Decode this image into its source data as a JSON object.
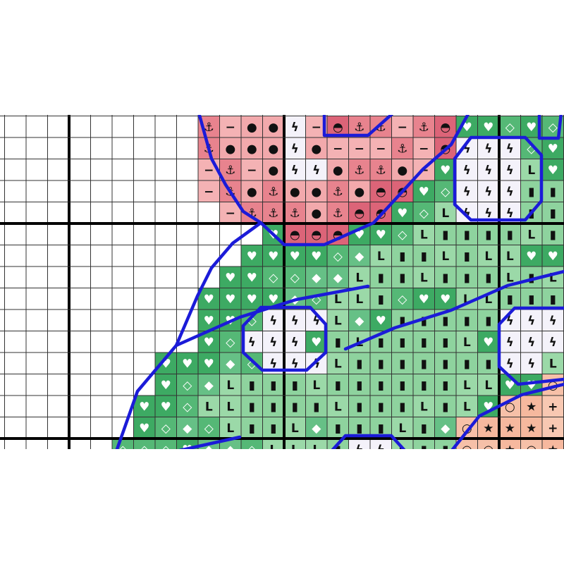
{
  "pattern": {
    "symbols": [
      {
        "glyph": "⚓",
        "fill": "#e8838e",
        "ink": "#111111"
      },
      {
        "glyph": "−",
        "fill": "#f4b2b4",
        "ink": "#111111"
      },
      {
        "glyph": "●",
        "fill": "#f2a9ac",
        "ink": "#111111"
      },
      {
        "glyph": "ϟ",
        "fill": "#f4f2fa",
        "ink": "#111111"
      },
      {
        "glyph": "◓",
        "fill": "#dc6478",
        "ink": "#111111"
      },
      {
        "glyph": "♥",
        "fill": "#3daa63",
        "ink": "#ffffff"
      },
      {
        "glyph": "◇",
        "fill": "#55b876",
        "ink": "#ffffff"
      },
      {
        "glyph": "◆",
        "fill": "#66c086",
        "ink": "#ffffff"
      },
      {
        "glyph": "L",
        "fill": "#9bd9a8",
        "ink": "#111111"
      },
      {
        "glyph": "▮",
        "fill": "#8ed39e",
        "ink": "#111111"
      },
      {
        "glyph": "★",
        "fill": "#f6b89e",
        "ink": "#111111"
      },
      {
        "glyph": "○",
        "fill": "#f6c0a8",
        "ink": "#111111"
      },
      {
        "glyph": "+",
        "fill": "#f8c8b2",
        "ink": "#111111"
      }
    ],
    "rows": [
      [
        null,
        null,
        null,
        null,
        null,
        null,
        null,
        null,
        null,
        "⚓",
        "−",
        "●",
        "●",
        "ϟ",
        "−",
        "◓",
        "⚓",
        "⚓",
        "−",
        "⚓",
        "◓",
        "♥",
        "♥",
        "◇",
        "♥",
        "◇"
      ],
      [
        null,
        null,
        null,
        null,
        null,
        null,
        null,
        null,
        null,
        "⚓",
        "●",
        "●",
        "●",
        "ϟ",
        "●",
        "−",
        "−",
        "−",
        "⚓",
        "−",
        "◓",
        "ϟ",
        "ϟ",
        "ϟ",
        "◇",
        "♥"
      ],
      [
        null,
        null,
        null,
        null,
        null,
        null,
        null,
        null,
        null,
        "−",
        "⚓",
        "−",
        "●",
        "ϟ",
        "ϟ",
        "●",
        "⚓",
        "⚓",
        "●",
        "−",
        "♥",
        "ϟ",
        "ϟ",
        "ϟ",
        "L",
        "♥"
      ],
      [
        null,
        null,
        null,
        null,
        null,
        null,
        null,
        null,
        null,
        "−",
        "⚓",
        "●",
        "⚓",
        "●",
        "●",
        "⚓",
        "●",
        "◓",
        "◓",
        "♥",
        "◇",
        "ϟ",
        "ϟ",
        "ϟ",
        "▮",
        "▮"
      ],
      [
        null,
        null,
        null,
        null,
        null,
        null,
        null,
        null,
        null,
        null,
        "−",
        "⚓",
        "⚓",
        "⚓",
        "●",
        "⚓",
        "◓",
        "◓",
        "♥",
        "◇",
        "L",
        "ϟ",
        "ϟ",
        "ϟ",
        "▮",
        "▮"
      ],
      [
        null,
        null,
        null,
        null,
        null,
        null,
        null,
        null,
        null,
        null,
        null,
        null,
        "♥",
        "◓",
        "◓",
        "◓",
        "♥",
        "♥",
        "◇",
        "L",
        "▮",
        "▮",
        "▮",
        "▮",
        "L",
        "▮"
      ],
      [
        null,
        null,
        null,
        null,
        null,
        null,
        null,
        null,
        null,
        null,
        null,
        "♥",
        "♥",
        "♥",
        "♥",
        "◇",
        "◆",
        "L",
        "▮",
        "▮",
        "L",
        "▮",
        "L",
        "L",
        "♥",
        "♥"
      ],
      [
        null,
        null,
        null,
        null,
        null,
        null,
        null,
        null,
        null,
        null,
        "♥",
        "♥",
        "◇",
        "◇",
        "◆",
        "◆",
        "L",
        "▮",
        "▮",
        "L",
        "▮",
        "▮",
        "▮",
        "L",
        "▮",
        "L"
      ],
      [
        null,
        null,
        null,
        null,
        null,
        null,
        null,
        null,
        null,
        "♥",
        "♥",
        "♥",
        "♥",
        "◆",
        "◇",
        "L",
        "L",
        "▮",
        "◇",
        "♥",
        "♥",
        "L",
        "L",
        "▮",
        "▮",
        "▮"
      ],
      [
        null,
        null,
        null,
        null,
        null,
        null,
        null,
        null,
        null,
        "♥",
        "♥",
        "◇",
        "ϟ",
        "ϟ",
        "ϟ",
        "L",
        "◆",
        "♥",
        "▮",
        "▮",
        "▮",
        "▮",
        "▮",
        "ϟ",
        "ϟ",
        "ϟ"
      ],
      [
        null,
        null,
        null,
        null,
        null,
        null,
        null,
        null,
        null,
        "♥",
        "◇",
        "ϟ",
        "ϟ",
        "ϟ",
        "♥",
        "▮",
        "L",
        "▮",
        "▮",
        "▮",
        "▮",
        "L",
        "♥",
        "ϟ",
        "ϟ",
        "ϟ"
      ],
      [
        null,
        null,
        null,
        null,
        null,
        null,
        null,
        "♥",
        "♥",
        "♥",
        "◆",
        "◇",
        "ϟ",
        "ϟ",
        "ϟ",
        "L",
        "▮",
        "▮",
        "▮",
        "▮",
        "▮",
        "▮",
        "▮",
        "ϟ",
        "ϟ",
        "L"
      ],
      [
        null,
        null,
        null,
        null,
        null,
        null,
        null,
        "♥",
        "◇",
        "◆",
        "L",
        "▮",
        "▮",
        "▮",
        "L",
        "▮",
        "▮",
        "▮",
        "▮",
        "▮",
        "▮",
        "L",
        "L",
        "♥",
        "♥",
        "○"
      ],
      [
        null,
        null,
        null,
        null,
        null,
        null,
        "♥",
        "♥",
        "◇",
        "L",
        "L",
        "▮",
        "▮",
        "▮",
        "▮",
        "L",
        "▮",
        "▮",
        "▮",
        "L",
        "▮",
        "L",
        "♥",
        "○",
        "★",
        "+"
      ],
      [
        null,
        null,
        null,
        null,
        null,
        null,
        "♥",
        "◇",
        "◆",
        "◇",
        "L",
        "▮",
        "▮",
        "L",
        "◆",
        "▮",
        "▮",
        "▮",
        "L",
        "▮",
        "◆",
        "○",
        "★",
        "★",
        "★",
        "+"
      ],
      [
        null,
        null,
        null,
        null,
        null,
        "◇",
        "◇",
        "◇",
        "♥",
        "◆",
        "◆",
        "◇",
        "L",
        "L",
        "L",
        "▮",
        "ϟ",
        "ϟ",
        "L",
        "▮",
        "▮",
        "○",
        "○",
        "★",
        "○",
        "★"
      ]
    ]
  }
}
